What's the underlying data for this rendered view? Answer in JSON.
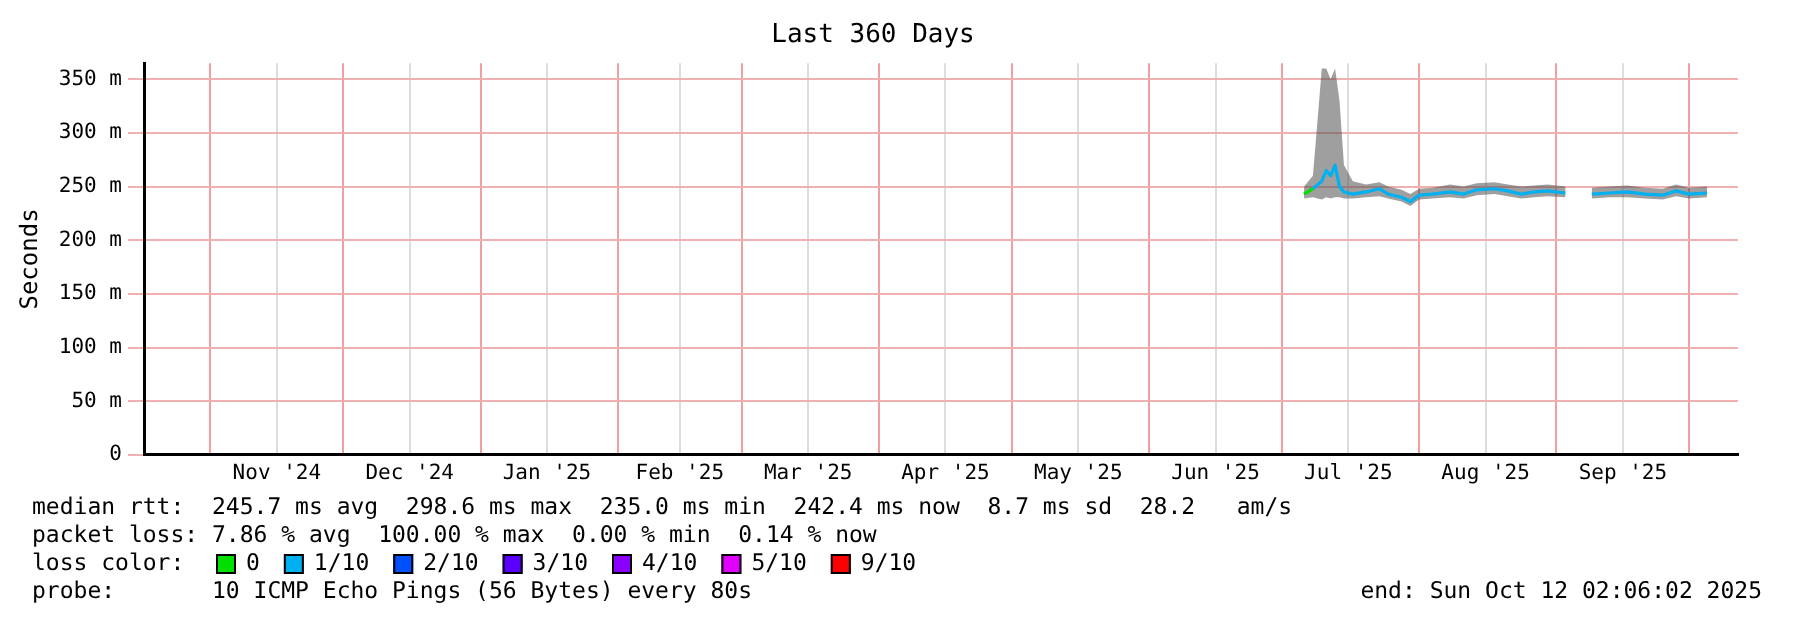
{
  "chart_data": {
    "type": "line",
    "title": "Last 360 Days",
    "ylabel": "Seconds",
    "legend_title": "loss color:",
    "legend": "bottom",
    "grid": true,
    "marker": "none",
    "line_style": "solid",
    "xlim": [
      "2024-10-17",
      "2025-10-12"
    ],
    "xticks": [
      {
        "value": "2024-11-01",
        "label": null
      },
      {
        "value": "2024-11-16",
        "label": "Nov '24"
      },
      {
        "value": "2024-12-01",
        "label": null
      },
      {
        "value": "2024-12-16",
        "label": "Dec '24"
      },
      {
        "value": "2025-01-01",
        "label": null
      },
      {
        "value": "2025-01-16",
        "label": "Jan '25"
      },
      {
        "value": "2025-02-01",
        "label": null
      },
      {
        "value": "2025-02-15",
        "label": "Feb '25"
      },
      {
        "value": "2025-03-01",
        "label": null
      },
      {
        "value": "2025-03-16",
        "label": "Mar '25"
      },
      {
        "value": "2025-04-01",
        "label": null
      },
      {
        "value": "2025-04-16",
        "label": "Apr '25"
      },
      {
        "value": "2025-05-01",
        "label": null
      },
      {
        "value": "2025-05-16",
        "label": "May '25"
      },
      {
        "value": "2025-06-01",
        "label": null
      },
      {
        "value": "2025-06-16",
        "label": "Jun '25"
      },
      {
        "value": "2025-07-01",
        "label": null
      },
      {
        "value": "2025-07-16",
        "label": "Jul '25"
      },
      {
        "value": "2025-08-01",
        "label": null
      },
      {
        "value": "2025-08-16",
        "label": "Aug '25"
      },
      {
        "value": "2025-09-01",
        "label": null
      },
      {
        "value": "2025-09-16",
        "label": "Sep '25"
      },
      {
        "value": "2025-10-01",
        "label": null
      }
    ],
    "ylim": [
      0,
      365
    ],
    "yticks": [
      0,
      {
        "value": 50,
        "label": "50 m"
      },
      {
        "value": 100,
        "label": "100 m"
      },
      {
        "value": 150,
        "label": "150 m"
      },
      {
        "value": 200,
        "label": "200 m"
      },
      {
        "value": 250,
        "label": "250 m"
      },
      {
        "value": 300,
        "label": "300 m"
      },
      {
        "value": 350,
        "label": "350 m"
      }
    ],
    "x": [
      "2025-07-06",
      "2025-07-08",
      "2025-07-10",
      "2025-07-11",
      "2025-07-12",
      "2025-07-13",
      "2025-07-14",
      "2025-07-15",
      "2025-07-17",
      "2025-07-20",
      "2025-07-23",
      "2025-07-25",
      "2025-07-28",
      "2025-07-30",
      "2025-08-01",
      "2025-08-04",
      "2025-08-08",
      "2025-08-11",
      "2025-08-14",
      "2025-08-18",
      "2025-08-21",
      "2025-08-24",
      "2025-08-27",
      "2025-08-30",
      "2025-09-03",
      "2025-09-06",
      "2025-09-09",
      "2025-09-13",
      "2025-09-17",
      "2025-09-21",
      "2025-09-25",
      "2025-09-28",
      "2025-10-01",
      "2025-10-05"
    ],
    "series": [
      {
        "name": "0",
        "color": "#00e000",
        "x": [
          "2025-07-06",
          "2025-07-08"
        ],
        "values": [
          243,
          248
        ]
      },
      {
        "name": "1/10",
        "color": "#00b0f0",
        "values": [
          null,
          248,
          255,
          265,
          260,
          270,
          250,
          245,
          243,
          245,
          248,
          243,
          240,
          236,
          242,
          243,
          245,
          243,
          247,
          248,
          246,
          243,
          245,
          246,
          244,
          null,
          243,
          244,
          245,
          243,
          242,
          246,
          243,
          244
        ],
        "lower": [
          239,
          240,
          238,
          240,
          239,
          240,
          240,
          239,
          239,
          240,
          241,
          239,
          236,
          232,
          238,
          239,
          240,
          239,
          242,
          243,
          241,
          239,
          240,
          241,
          240,
          null,
          239,
          240,
          240,
          239,
          238,
          241,
          239,
          240
        ],
        "upper": [
          250,
          260,
          360,
          360,
          350,
          360,
          330,
          270,
          255,
          252,
          254,
          250,
          247,
          243,
          248,
          249,
          252,
          250,
          253,
          254,
          252,
          250,
          251,
          252,
          250,
          null,
          249,
          250,
          251,
          249,
          248,
          252,
          249,
          250
        ]
      },
      {
        "name": "2/10",
        "color": "#0050ff",
        "values": [
          null,
          null,
          null,
          null,
          null,
          null,
          null,
          null,
          null,
          null,
          null,
          null,
          null,
          null,
          null,
          null,
          null,
          null,
          null,
          null,
          null,
          null,
          null,
          null,
          null,
          null,
          null,
          null,
          null,
          null,
          null,
          null,
          null,
          null
        ]
      },
      {
        "name": "3/10",
        "color": "#5a00ff",
        "values": [
          null,
          null,
          null,
          null,
          null,
          null,
          null,
          null,
          null,
          null,
          null,
          null,
          null,
          null,
          null,
          null,
          null,
          null,
          null,
          null,
          null,
          null,
          null,
          null,
          null,
          null,
          null,
          null,
          null,
          null,
          null,
          null,
          null,
          null
        ]
      },
      {
        "name": "4/10",
        "color": "#8a00ff",
        "values": [
          null,
          null,
          null,
          null,
          null,
          null,
          null,
          null,
          null,
          null,
          null,
          null,
          null,
          null,
          null,
          null,
          null,
          null,
          null,
          null,
          null,
          null,
          null,
          null,
          null,
          null,
          null,
          null,
          null,
          null,
          null,
          null,
          null,
          null
        ]
      },
      {
        "name": "5/10",
        "color": "#e000ff",
        "values": [
          null,
          null,
          null,
          null,
          null,
          null,
          null,
          null,
          null,
          null,
          null,
          null,
          null,
          null,
          null,
          null,
          null,
          null,
          null,
          null,
          null,
          null,
          null,
          null,
          null,
          null,
          null,
          null,
          null,
          null,
          null,
          null,
          null,
          null
        ]
      },
      {
        "name": "9/10",
        "color": "#ff0000",
        "values": [
          null,
          null,
          null,
          null,
          null,
          null,
          null,
          null,
          null,
          null,
          null,
          null,
          null,
          null,
          null,
          null,
          null,
          null,
          null,
          null,
          null,
          null,
          null,
          null,
          null,
          null,
          null,
          null,
          null,
          null,
          null,
          null,
          null,
          null
        ]
      }
    ],
    "annotations": [
      "median rtt:  245.7 ms avg  298.6 ms max  235.0 ms min  242.4 ms now  8.7 ms sd  28.2   am/s",
      "packet loss: 7.86 % avg  100.00 % max  0.00 % min  0.14 % now",
      "probe:       10 ICMP Echo Pings (56 Bytes) every 80s",
      "end: Sun Oct 12 02:06:02 2025"
    ]
  }
}
